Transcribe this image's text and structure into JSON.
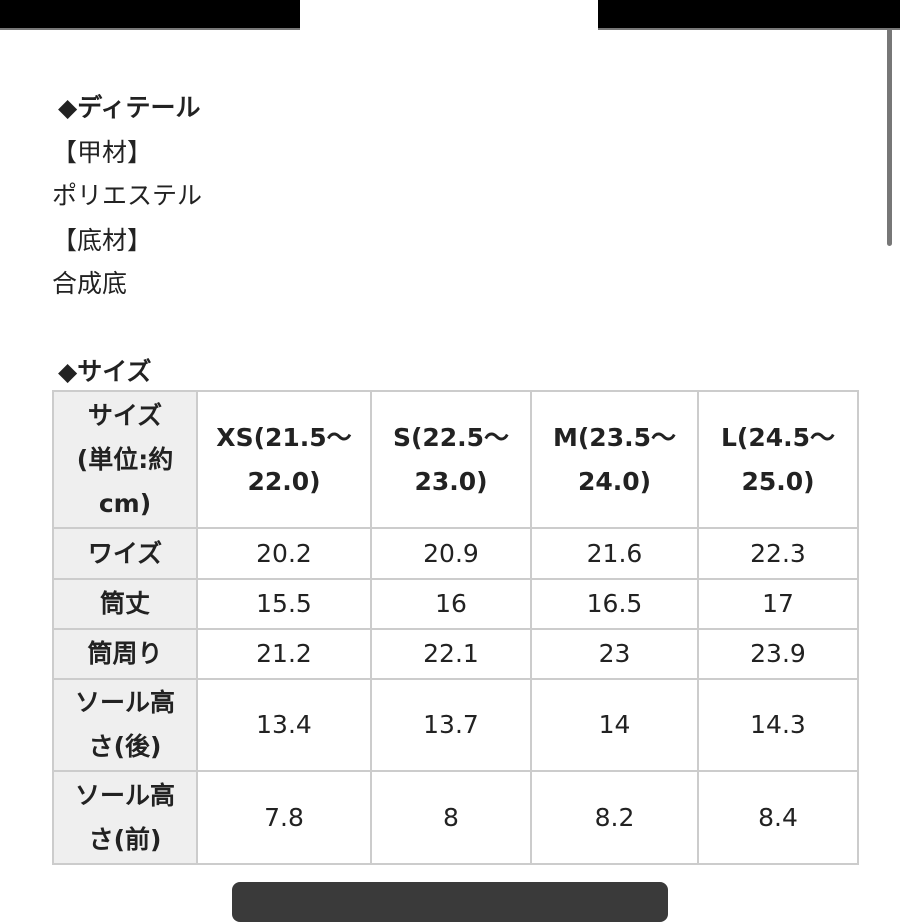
{
  "detail": {
    "heading": "◆ディテール",
    "upper_label": "【甲材】",
    "upper_value": "ポリエステル",
    "sole_label": "【底材】",
    "sole_value": "合成底"
  },
  "size": {
    "heading": "◆サイズ",
    "header": [
      "サイズ\n(単位:約\ncm)",
      "XS(21.5〜\n22.0)",
      "S(22.5〜\n23.0)",
      "M(23.5〜\n24.0)",
      "L(24.5〜\n25.0)"
    ],
    "rows": [
      [
        "ワイズ",
        "20.2",
        "20.9",
        "21.6",
        "22.3"
      ],
      [
        "筒丈",
        "15.5",
        "16",
        "16.5",
        "17"
      ],
      [
        "筒周り",
        "21.2",
        "22.1",
        "23",
        "23.9"
      ],
      [
        "ソール高\nさ(後)",
        "13.4",
        "13.7",
        "14",
        "14.3"
      ],
      [
        "ソール高\nさ(前)",
        "7.8",
        "8",
        "8.2",
        "8.4"
      ]
    ]
  }
}
